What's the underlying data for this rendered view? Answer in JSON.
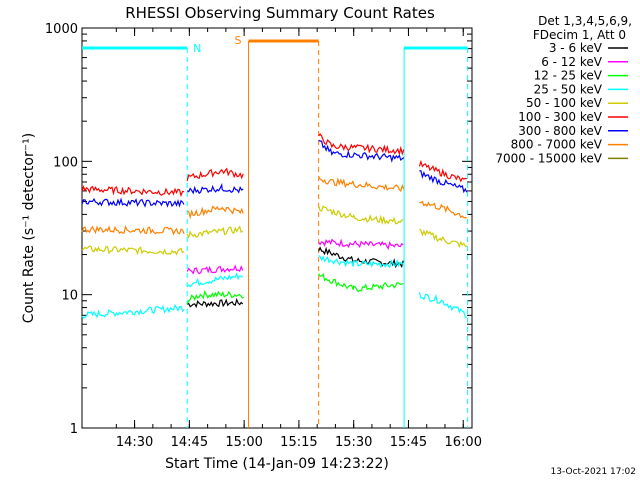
{
  "chart_data": {
    "type": "line",
    "title": "RHESSI Observing Summary Count Rates",
    "xlabel": "Start Time (14-Jan-09 14:23:22)",
    "ylabel": "Count Rate (s⁻¹ detector⁻¹)",
    "yscale": "log",
    "ylim": [
      1,
      1000
    ],
    "xlim_minutes": [
      14.25,
      16.05
    ],
    "x_ticks": [
      "14:30",
      "14:45",
      "15:00",
      "15:15",
      "15:30",
      "15:45",
      "16:00"
    ],
    "x_tick_values_hours": [
      14.5,
      14.75,
      15.0,
      15.25,
      15.5,
      15.75,
      16.0
    ],
    "y_ticks": [
      "1",
      "10",
      "100",
      "1000"
    ],
    "y_tick_values": [
      1,
      10,
      100,
      1000
    ],
    "legend_header": [
      "Det 1,3,4,5,6,9,",
      "FDecim 1, Att 0"
    ],
    "legend_position": "right",
    "timestamp": "13-Oct-2021 17:02",
    "annotations": [
      {
        "label": "N",
        "color": "#00ffff"
      },
      {
        "label": "S",
        "color": "#ff8000"
      }
    ],
    "series": [
      {
        "name": "3 - 6 keV",
        "color": "#000000",
        "segments": [
          {
            "x": [
              14.74,
              15.0
            ],
            "y": [
              8.5,
              8.7
            ]
          },
          {
            "x": [
              15.34,
              15.5,
              15.73
            ],
            "y": [
              22,
              18,
              17
            ]
          }
        ]
      },
      {
        "name": "6 - 12 keV",
        "color": "#ff00ff",
        "segments": [
          {
            "x": [
              14.74,
              15.0
            ],
            "y": [
              15,
              16
            ]
          },
          {
            "x": [
              15.34,
              15.5,
              15.73
            ],
            "y": [
              25,
              24,
              23
            ]
          }
        ]
      },
      {
        "name": "12 - 25 keV",
        "color": "#00ff00",
        "segments": [
          {
            "x": [
              14.74,
              14.8,
              15.0
            ],
            "y": [
              9,
              10,
              10
            ]
          },
          {
            "x": [
              15.34,
              15.5,
              15.73
            ],
            "y": [
              14,
              11,
              12
            ]
          }
        ]
      },
      {
        "name": "25 - 50 keV",
        "color": "#00ffff",
        "segments": [
          {
            "x": [
              14.26,
              14.73
            ],
            "y": [
              7,
              8
            ]
          },
          {
            "x": [
              14.74,
              15.0
            ],
            "y": [
              12,
              14
            ]
          },
          {
            "x": [
              15.34,
              15.5,
              15.73
            ],
            "y": [
              19,
              17,
              17
            ]
          },
          {
            "x": [
              15.8,
              15.9,
              16.02
            ],
            "y": [
              10,
              9,
              7
            ]
          }
        ]
      },
      {
        "name": "50 - 100 keV",
        "color": "#cccc00",
        "segments": [
          {
            "x": [
              14.26,
              14.73
            ],
            "y": [
              22,
              21
            ]
          },
          {
            "x": [
              14.74,
              15.0
            ],
            "y": [
              28,
              31
            ]
          },
          {
            "x": [
              15.34,
              15.5,
              15.73
            ],
            "y": [
              45,
              38,
              35
            ]
          },
          {
            "x": [
              15.8,
              15.9,
              16.02
            ],
            "y": [
              30,
              26,
              23
            ]
          }
        ]
      },
      {
        "name": "100 - 300 keV",
        "color": "#ff0000",
        "segments": [
          {
            "x": [
              14.26,
              14.73
            ],
            "y": [
              62,
              58
            ]
          },
          {
            "x": [
              14.74,
              14.9,
              15.0
            ],
            "y": [
              75,
              85,
              78
            ]
          },
          {
            "x": [
              15.34,
              15.4,
              15.73
            ],
            "y": [
              155,
              130,
              120
            ]
          },
          {
            "x": [
              15.8,
              15.9,
              16.02
            ],
            "y": [
              95,
              82,
              70
            ]
          }
        ]
      },
      {
        "name": "300 - 800 keV",
        "color": "#0000ff",
        "segments": [
          {
            "x": [
              14.26,
              14.73
            ],
            "y": [
              50,
              48
            ]
          },
          {
            "x": [
              14.74,
              14.9,
              15.0
            ],
            "y": [
              60,
              63,
              60
            ]
          },
          {
            "x": [
              15.34,
              15.4,
              15.73
            ],
            "y": [
              140,
              115,
              105
            ]
          },
          {
            "x": [
              15.8,
              15.9,
              16.02
            ],
            "y": [
              82,
              70,
              60
            ]
          }
        ]
      },
      {
        "name": "800 - 7000 keV",
        "color": "#ff8000",
        "segments": [
          {
            "x": [
              14.26,
              14.73
            ],
            "y": [
              31,
              30
            ]
          },
          {
            "x": [
              14.74,
              14.9,
              15.0
            ],
            "y": [
              40,
              45,
              41
            ]
          },
          {
            "x": [
              15.34,
              15.4,
              15.73
            ],
            "y": [
              75,
              70,
              62
            ]
          },
          {
            "x": [
              15.8,
              15.9,
              16.02
            ],
            "y": [
              50,
              45,
              38
            ]
          }
        ]
      },
      {
        "name": "7000 - 15000 keV",
        "color": "#808000",
        "segments": []
      }
    ]
  }
}
